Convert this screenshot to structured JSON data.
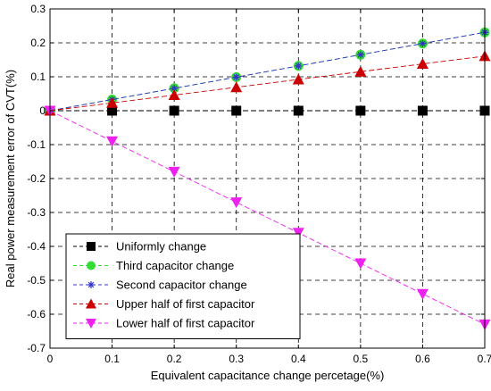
{
  "chart_data": {
    "type": "line",
    "title": "",
    "xlabel": "Equivalent capacitance change percetage(%)",
    "ylabel": "Real power measurement error of CVT(%)",
    "xlim": [
      0,
      0.7
    ],
    "ylim": [
      -0.7,
      0.3
    ],
    "xticks": [
      0,
      0.1,
      0.2,
      0.3,
      0.4,
      0.5,
      0.6,
      0.7
    ],
    "xtick_labels": [
      "0",
      "0.1",
      "0.2",
      "0.3",
      "0.4",
      "0.5",
      "0.6",
      "0.7"
    ],
    "yticks": [
      0.3,
      0.2,
      0.1,
      0,
      -0.1,
      -0.2,
      -0.3,
      -0.4,
      -0.5,
      -0.6,
      -0.7
    ],
    "ytick_labels": [
      "0.3",
      "0.2",
      "0.1",
      "0",
      "-0.1",
      "-0.2",
      "-0.3",
      "-0.4",
      "-0.5",
      "-0.6",
      "-0.7"
    ],
    "grid": true,
    "legend_position": "bottom-left",
    "x": [
      0,
      0.1,
      0.2,
      0.3,
      0.4,
      0.5,
      0.6,
      0.7
    ],
    "series": [
      {
        "name": "Uniformly change",
        "values": [
          0,
          0,
          0,
          0,
          0,
          0,
          0,
          0
        ],
        "color": "#000000",
        "marker": "square",
        "line_style": "dashed"
      },
      {
        "name": "Third capacitor change",
        "values": [
          0,
          0.033,
          0.066,
          0.099,
          0.132,
          0.165,
          0.198,
          0.231
        ],
        "color": "#33dd33",
        "marker": "circle",
        "line_style": "dashed"
      },
      {
        "name": "Second capacitor change",
        "values": [
          0,
          0.033,
          0.066,
          0.099,
          0.132,
          0.165,
          0.198,
          0.231
        ],
        "color": "#3333cc",
        "marker": "asterisk",
        "line_style": "dashed"
      },
      {
        "name": "Upper half of first capacitor",
        "values": [
          0,
          0.023,
          0.046,
          0.069,
          0.092,
          0.115,
          0.138,
          0.161
        ],
        "color": "#cc0000",
        "marker": "triangle-up",
        "line_style": "dashed"
      },
      {
        "name": "Lower half of first capacitor",
        "values": [
          0,
          -0.09,
          -0.18,
          -0.27,
          -0.36,
          -0.45,
          -0.54,
          -0.63
        ],
        "color": "#ee22ee",
        "marker": "triangle-down",
        "line_style": "dashed"
      }
    ]
  }
}
